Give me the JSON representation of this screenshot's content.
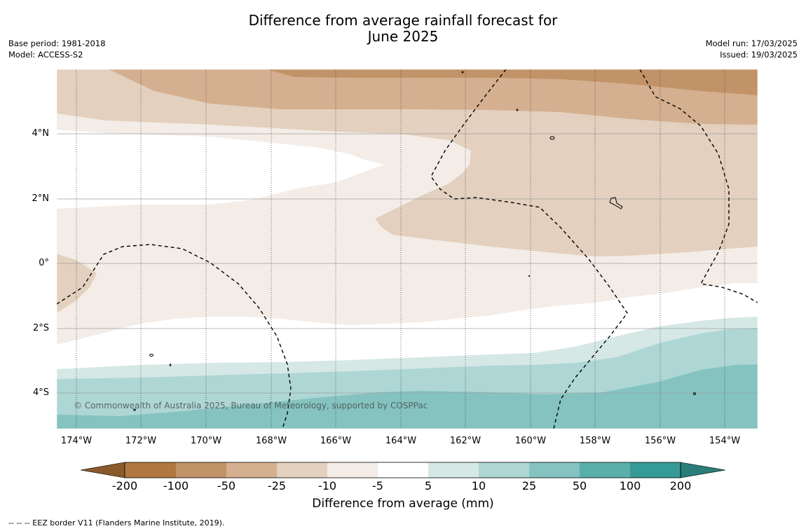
{
  "title": {
    "line1": "Difference from average rainfall forecast for",
    "line2": "June 2025"
  },
  "meta_left": {
    "base_period": "Base period: 1981-2018",
    "model": "Model: ACCESS-S2"
  },
  "meta_right": {
    "model_run": "Model run: 17/03/2025",
    "issued": "Issued: 19/03/2025"
  },
  "map": {
    "lat_labels": [
      "4°N",
      "2°N",
      "0°",
      "2°S",
      "4°S"
    ],
    "lon_labels": [
      "174°W",
      "172°W",
      "170°W",
      "168°W",
      "166°W",
      "164°W",
      "162°W",
      "160°W",
      "158°W",
      "156°W",
      "154°W"
    ],
    "copyright": "© Commonwealth of Australia 2025, Bureau of Meteorology, supported by COSPPac"
  },
  "colorbar": {
    "ticks": [
      "-200",
      "-100",
      "-50",
      "-25",
      "-10",
      "-5",
      "5",
      "10",
      "25",
      "50",
      "100",
      "200"
    ],
    "colors": {
      "lt_-200": "#8b5a2b",
      "-200_-100": "#b07840",
      "-100_-50": "#c29368",
      "-50_-25": "#d4b090",
      "-25_-10": "#e3d0be",
      "-10_-5": "#f4ece6",
      "-5_5": "#ffffff",
      "5_10": "#d5e8e6",
      "10_25": "#aed6d5",
      "25_50": "#84c3c0",
      "50_100": "#5bafab",
      "100_200": "#369a96",
      "gt_200": "#2a7d79"
    },
    "title": "Difference from average (mm)"
  },
  "footnote": "--  --  -- EEZ border V11 (Flanders Marine Institute, 2019)."
}
